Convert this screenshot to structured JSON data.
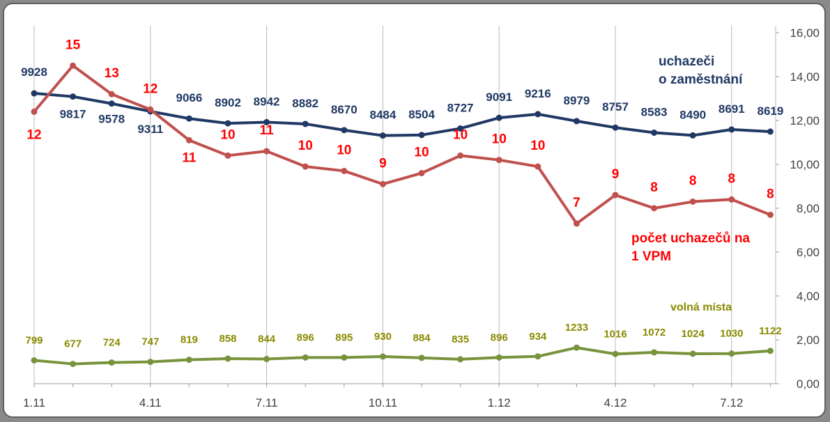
{
  "chart_data": {
    "type": "line",
    "categories": [
      "1.11",
      "",
      "",
      "4.11",
      "",
      "",
      "7.11",
      "",
      "",
      "10.11",
      "",
      "",
      "1.12",
      "",
      "",
      "4.12",
      "",
      "",
      "7.12",
      ""
    ],
    "x_tick_labels": [
      "1.11",
      "4.11",
      "7.11",
      "10.11",
      "1.12",
      "4.12",
      "7.12"
    ],
    "y_axis_right": {
      "min": 0,
      "max": 16,
      "step": 2,
      "tick_labels": [
        "0,00",
        "2,00",
        "4,00",
        "6,00",
        "8,00",
        "10,00",
        "12,00",
        "14,00",
        "16,00"
      ]
    },
    "grid": "vertical",
    "series": [
      {
        "name": "uchazeči o zaměstnání",
        "name_lines": [
          "uchazeči",
          "o zaměstnání"
        ],
        "color": "#1f3864",
        "values": [
          9928,
          9817,
          9578,
          9311,
          9066,
          8902,
          8942,
          8882,
          8670,
          8484,
          8504,
          8727,
          9091,
          9216,
          8979,
          8757,
          8583,
          8490,
          8691,
          8619
        ],
        "labels": [
          "9928",
          "9817",
          "9578",
          "9311",
          "9066",
          "8902",
          "8942",
          "8882",
          "8670",
          "8484",
          "8504",
          "8727",
          "9091",
          "9216",
          "8979",
          "8757",
          "8583",
          "8490",
          "8691",
          "8619"
        ],
        "scale_note": "plotted on right axis as value/750"
      },
      {
        "name": "počet uchazečů na 1 VPM",
        "name_lines": [
          "počet uchazečů na",
          "1 VPM"
        ],
        "color": "#c0504d",
        "label_color": "#ff0000",
        "values": [
          12.4,
          14.5,
          13.2,
          12.5,
          11.1,
          10.4,
          10.6,
          9.9,
          9.7,
          9.1,
          9.6,
          10.4,
          10.2,
          9.9,
          7.3,
          8.6,
          8.0,
          8.3,
          8.4,
          7.7
        ],
        "labels": [
          "12",
          "15",
          "13",
          "12",
          "11",
          "10",
          "11",
          "10",
          "10",
          "9",
          "10",
          "10",
          "10",
          "10",
          "7",
          "9",
          "8",
          "8",
          "8",
          "8"
        ]
      },
      {
        "name": "volná místa",
        "name_lines": [
          "volná místa"
        ],
        "color": "#77933c",
        "label_color": "#8a8a00",
        "values": [
          799,
          677,
          724,
          747,
          819,
          858,
          844,
          896,
          895,
          930,
          884,
          835,
          896,
          934,
          1233,
          1016,
          1072,
          1024,
          1030,
          1122
        ],
        "labels": [
          "799",
          "677",
          "724",
          "747",
          "819",
          "858",
          "844",
          "896",
          "895",
          "930",
          "884",
          "835",
          "896",
          "934",
          "1233",
          "1016",
          "1072",
          "1024",
          "1030",
          "1122"
        ],
        "scale_note": "plotted on right axis as value/750"
      }
    ]
  }
}
